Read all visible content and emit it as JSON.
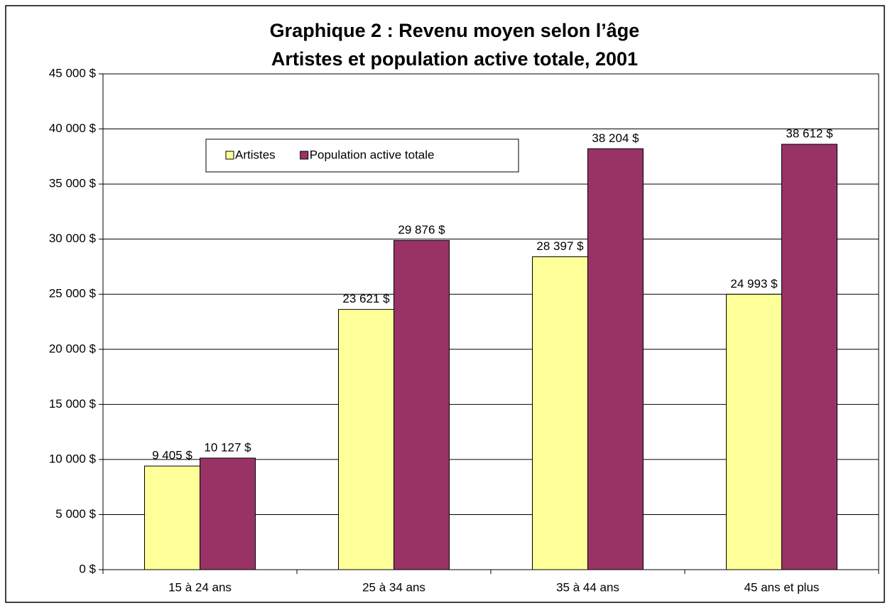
{
  "chart_data": {
    "type": "bar",
    "title": "Graphique 2 : Revenu moyen selon l’âge",
    "subtitle": "Artistes et population active totale, 2001",
    "categories": [
      "15 à 24 ans",
      "25 à 34 ans",
      "35 à 44 ans",
      "45 ans et plus"
    ],
    "series": [
      {
        "name": "Artistes",
        "color": "#ffff99",
        "values": [
          9405,
          23621,
          28397,
          24993
        ],
        "value_labels": [
          "9 405 $",
          "23 621 $",
          "28 397 $",
          "24 993 $"
        ]
      },
      {
        "name": "Population active totale",
        "color": "#993366",
        "values": [
          10127,
          29876,
          38204,
          38612
        ],
        "value_labels": [
          "10 127 $",
          "29 876 $",
          "38 204 $",
          "38 612 $"
        ]
      }
    ],
    "ylim": [
      0,
      45000
    ],
    "yticks": [
      {
        "value": 0,
        "label": "0 $"
      },
      {
        "value": 5000,
        "label": "5 000 $"
      },
      {
        "value": 10000,
        "label": "10 000 $"
      },
      {
        "value": 15000,
        "label": "15 000 $"
      },
      {
        "value": 20000,
        "label": "20 000 $"
      },
      {
        "value": 25000,
        "label": "25 000 $"
      },
      {
        "value": 30000,
        "label": "30 000 $"
      },
      {
        "value": 35000,
        "label": "35 000 $"
      },
      {
        "value": 40000,
        "label": "40 000 $"
      },
      {
        "value": 45000,
        "label": "45 000 $"
      }
    ],
    "grid": true,
    "legend": "top-left"
  }
}
